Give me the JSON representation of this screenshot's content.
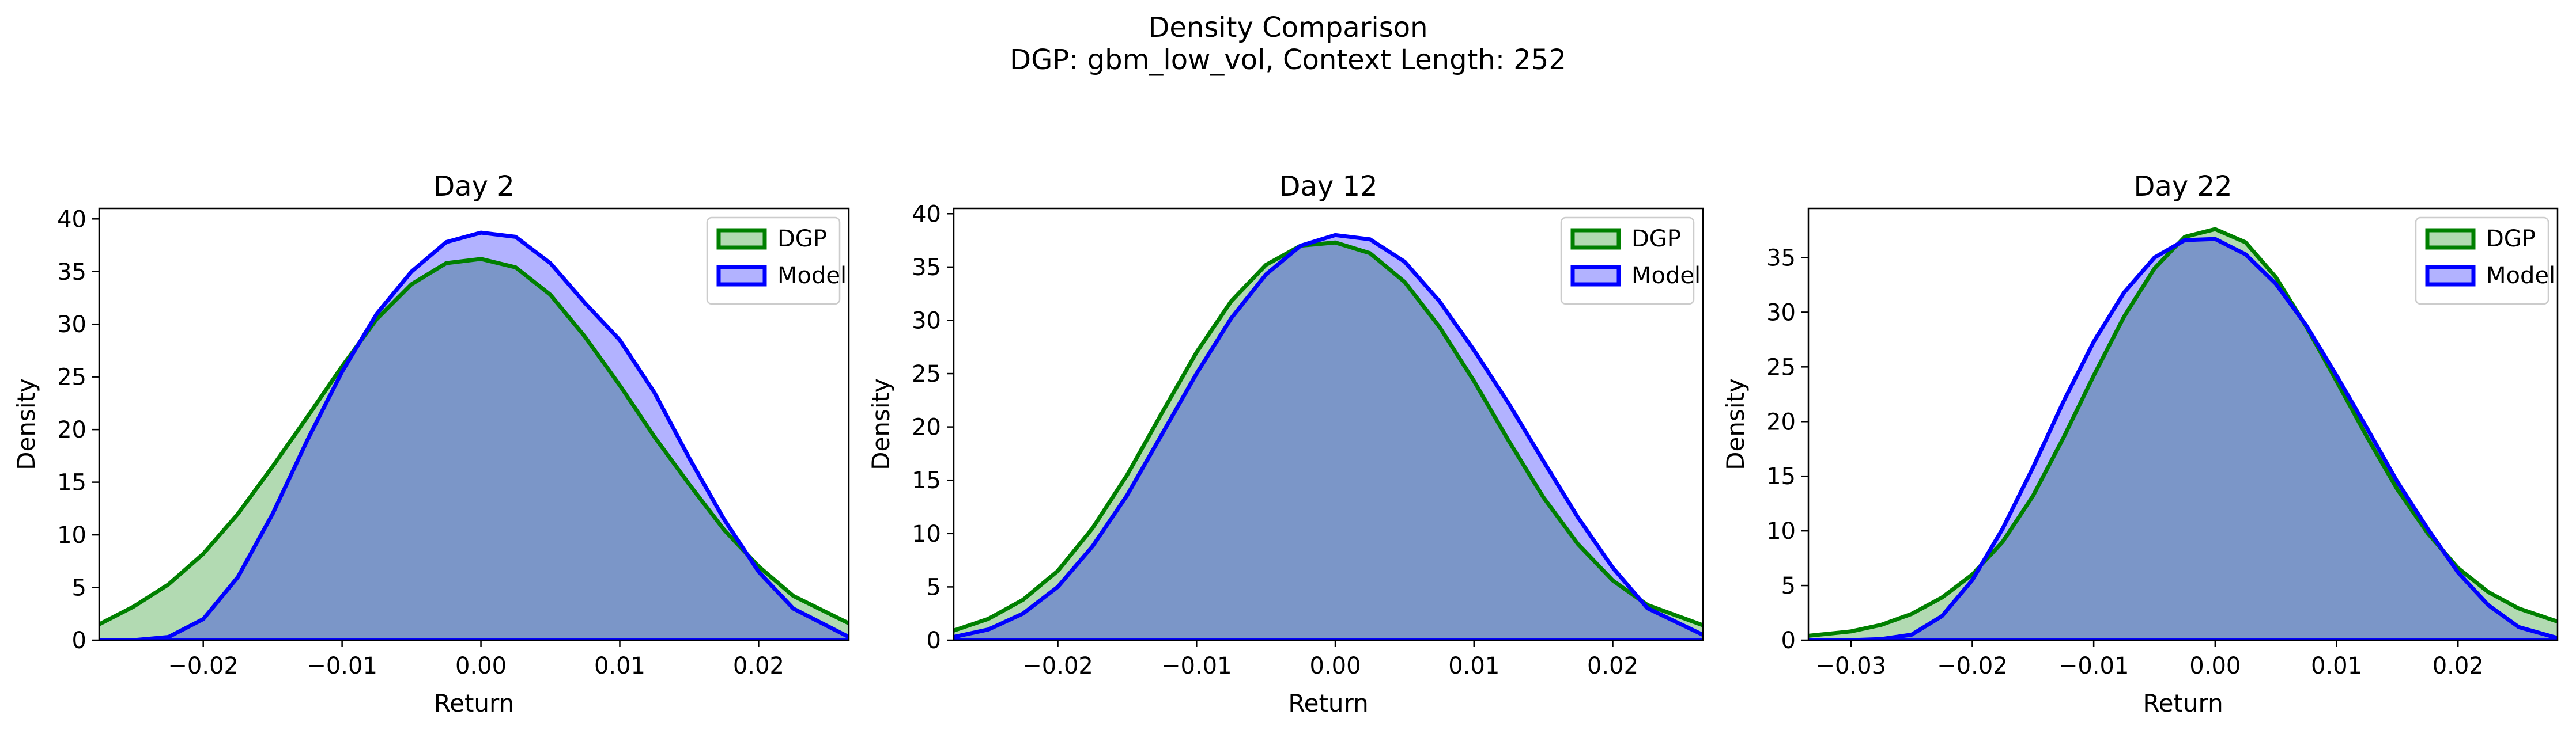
{
  "figure": {
    "title": "Density Comparison",
    "subtitle": "DGP: gbm_low_vol, Context Length: 252"
  },
  "colors": {
    "dgp_line": "#008000",
    "dgp_fill": "#b2dab2",
    "model_line": "#0000ff",
    "model_fill": "#b2b2ff",
    "overlap_fill": "#7b96c8",
    "overlap_line": "#005050"
  },
  "chart_data": [
    {
      "type": "area",
      "title": "Day 2",
      "xlabel": "Return",
      "ylabel": "Density",
      "xlim": [
        -0.0275,
        0.0265
      ],
      "ylim": [
        0,
        41
      ],
      "xticks": [
        -0.02,
        -0.01,
        0.0,
        0.01,
        0.02
      ],
      "xticklabels": [
        "−0.02",
        "−0.01",
        "0.00",
        "0.01",
        "0.02"
      ],
      "yticks": [
        0,
        5,
        10,
        15,
        20,
        25,
        30,
        35,
        40
      ],
      "yticklabels": [
        "0",
        "5",
        "10",
        "15",
        "20",
        "25",
        "30",
        "35",
        "40"
      ],
      "legend": "top-right",
      "series": [
        {
          "name": "DGP",
          "x": [
            -0.0275,
            -0.025,
            -0.0225,
            -0.02,
            -0.0175,
            -0.015,
            -0.0125,
            -0.01,
            -0.0075,
            -0.005,
            -0.0025,
            0.0,
            0.0025,
            0.005,
            0.0075,
            0.01,
            0.0125,
            0.015,
            0.0175,
            0.02,
            0.0225,
            0.0265
          ],
          "values": [
            1.5,
            3.2,
            5.3,
            8.2,
            12.0,
            16.5,
            21.2,
            26.0,
            30.5,
            33.8,
            35.8,
            36.2,
            35.4,
            32.8,
            28.8,
            24.2,
            19.3,
            14.8,
            10.5,
            7.0,
            4.2,
            1.6
          ]
        },
        {
          "name": "Model",
          "x": [
            -0.0275,
            -0.025,
            -0.0225,
            -0.02,
            -0.0175,
            -0.015,
            -0.0125,
            -0.01,
            -0.0075,
            -0.005,
            -0.0025,
            0.0,
            0.0025,
            0.005,
            0.0075,
            0.01,
            0.0125,
            0.015,
            0.0175,
            0.02,
            0.0225,
            0.0265
          ],
          "values": [
            0.0,
            0.0,
            0.3,
            2.0,
            6.0,
            12.0,
            19.0,
            25.5,
            31.0,
            35.0,
            37.8,
            38.7,
            38.3,
            35.8,
            32.0,
            28.5,
            23.5,
            17.3,
            11.5,
            6.5,
            3.0,
            0.3
          ]
        }
      ]
    },
    {
      "type": "area",
      "title": "Day 12",
      "xlabel": "Return",
      "ylabel": "Density",
      "xlim": [
        -0.0275,
        0.0265
      ],
      "ylim": [
        0,
        40.5
      ],
      "xticks": [
        -0.02,
        -0.01,
        0.0,
        0.01,
        0.02
      ],
      "xticklabels": [
        "−0.02",
        "−0.01",
        "0.00",
        "0.01",
        "0.02"
      ],
      "yticks": [
        0,
        5,
        10,
        15,
        20,
        25,
        30,
        35,
        40
      ],
      "yticklabels": [
        "0",
        "5",
        "10",
        "15",
        "20",
        "25",
        "30",
        "35",
        "40"
      ],
      "legend": "top-right",
      "series": [
        {
          "name": "DGP",
          "x": [
            -0.0275,
            -0.025,
            -0.0225,
            -0.02,
            -0.0175,
            -0.015,
            -0.0125,
            -0.01,
            -0.0075,
            -0.005,
            -0.0025,
            0.0,
            0.0025,
            0.005,
            0.0075,
            0.01,
            0.0125,
            0.015,
            0.0175,
            0.02,
            0.0225,
            0.0265
          ],
          "values": [
            0.9,
            2.0,
            3.8,
            6.5,
            10.5,
            15.5,
            21.3,
            27.0,
            31.8,
            35.2,
            37.0,
            37.3,
            36.3,
            33.6,
            29.4,
            24.3,
            18.7,
            13.4,
            9.0,
            5.6,
            3.3,
            1.4
          ]
        },
        {
          "name": "Model",
          "x": [
            -0.0275,
            -0.025,
            -0.0225,
            -0.02,
            -0.0175,
            -0.015,
            -0.0125,
            -0.01,
            -0.0075,
            -0.005,
            -0.0025,
            0.0,
            0.0025,
            0.005,
            0.0075,
            0.01,
            0.0125,
            0.015,
            0.0175,
            0.02,
            0.0225,
            0.0265
          ],
          "values": [
            0.3,
            1.0,
            2.5,
            5.0,
            8.8,
            13.6,
            19.3,
            25.0,
            30.2,
            34.3,
            37.0,
            38.0,
            37.6,
            35.5,
            31.8,
            27.2,
            22.2,
            16.8,
            11.5,
            6.8,
            3.0,
            0.5
          ]
        }
      ]
    },
    {
      "type": "area",
      "title": "Day 22",
      "xlabel": "Return",
      "ylabel": "Density",
      "xlim": [
        -0.0335,
        0.0282
      ],
      "ylim": [
        0,
        39.5
      ],
      "xticks": [
        -0.03,
        -0.02,
        -0.01,
        0.0,
        0.01,
        0.02
      ],
      "xticklabels": [
        "−0.03",
        "−0.02",
        "−0.01",
        "0.00",
        "0.01",
        "0.02"
      ],
      "yticks": [
        0,
        5,
        10,
        15,
        20,
        25,
        30,
        35
      ],
      "yticklabels": [
        "0",
        "5",
        "10",
        "15",
        "20",
        "25",
        "30",
        "35"
      ],
      "legend": "top-right",
      "series": [
        {
          "name": "DGP",
          "x": [
            -0.0335,
            -0.03,
            -0.0275,
            -0.025,
            -0.0225,
            -0.02,
            -0.0175,
            -0.015,
            -0.0125,
            -0.01,
            -0.0075,
            -0.005,
            -0.0025,
            0.0,
            0.0025,
            0.005,
            0.0075,
            0.01,
            0.0125,
            0.015,
            0.0175,
            0.02,
            0.0225,
            0.025,
            0.0282
          ],
          "values": [
            0.4,
            0.8,
            1.4,
            2.4,
            3.9,
            6.0,
            9.0,
            13.2,
            18.5,
            24.2,
            29.6,
            34.0,
            36.9,
            37.6,
            36.4,
            33.2,
            28.7,
            23.7,
            18.6,
            13.8,
            9.8,
            6.6,
            4.4,
            2.9,
            1.7
          ]
        },
        {
          "name": "Model",
          "x": [
            -0.0335,
            -0.03,
            -0.0275,
            -0.025,
            -0.0225,
            -0.02,
            -0.0175,
            -0.015,
            -0.0125,
            -0.01,
            -0.0075,
            -0.005,
            -0.0025,
            0.0,
            0.0025,
            0.005,
            0.0075,
            0.01,
            0.0125,
            0.015,
            0.0175,
            0.02,
            0.0225,
            0.025,
            0.0282
          ],
          "values": [
            0.0,
            0.0,
            0.1,
            0.5,
            2.2,
            5.5,
            10.2,
            15.8,
            21.8,
            27.3,
            31.8,
            35.0,
            36.6,
            36.7,
            35.3,
            32.6,
            28.8,
            24.2,
            19.4,
            14.5,
            10.2,
            6.2,
            3.2,
            1.2,
            0.2
          ]
        }
      ]
    }
  ]
}
